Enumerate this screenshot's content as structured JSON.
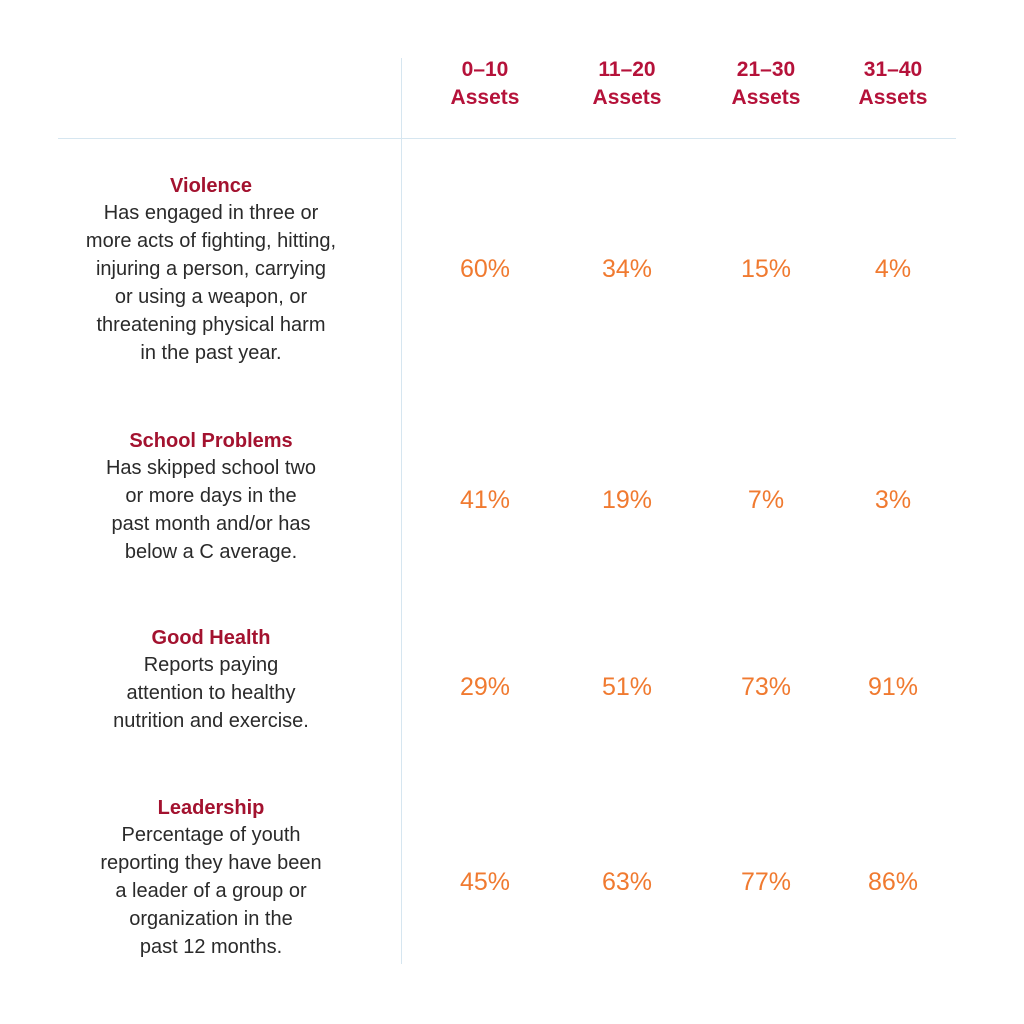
{
  "colors": {
    "header": "#b5123a",
    "row_title": "#a3122f",
    "value": "#f07a30",
    "rule": "#d6e6f0"
  },
  "chart_data": {
    "type": "table",
    "columns": [
      {
        "range": "0–10",
        "unit": "Assets"
      },
      {
        "range": "11–20",
        "unit": "Assets"
      },
      {
        "range": "21–30",
        "unit": "Assets"
      },
      {
        "range": "31–40",
        "unit": "Assets"
      }
    ],
    "rows": [
      {
        "title": "Violence",
        "description_lines": [
          "Has engaged in three or",
          "more acts of fighting, hitting,",
          "injuring a person, carrying",
          "or using a weapon, or",
          "threatening physical harm",
          "in the past year."
        ],
        "values": [
          60,
          34,
          15,
          4
        ],
        "labels": [
          "60%",
          "34%",
          "15%",
          "4%"
        ]
      },
      {
        "title": "School Problems",
        "description_lines": [
          "Has skipped school two",
          "or more days in the",
          "past month and/or has",
          "below a C average."
        ],
        "values": [
          41,
          19,
          7,
          3
        ],
        "labels": [
          "41%",
          "19%",
          "7%",
          "3%"
        ]
      },
      {
        "title": "Good Health",
        "description_lines": [
          "Reports paying",
          "attention to healthy",
          "nutrition and exercise."
        ],
        "values": [
          29,
          51,
          73,
          91
        ],
        "labels": [
          "29%",
          "51%",
          "73%",
          "91%"
        ]
      },
      {
        "title": "Leadership",
        "description_lines": [
          "Percentage of youth",
          "reporting they have been",
          "a leader of a group or",
          "organization in the",
          "past 12 months."
        ],
        "values": [
          45,
          63,
          77,
          86
        ],
        "labels": [
          "45%",
          "63%",
          "77%",
          "86%"
        ]
      }
    ]
  }
}
